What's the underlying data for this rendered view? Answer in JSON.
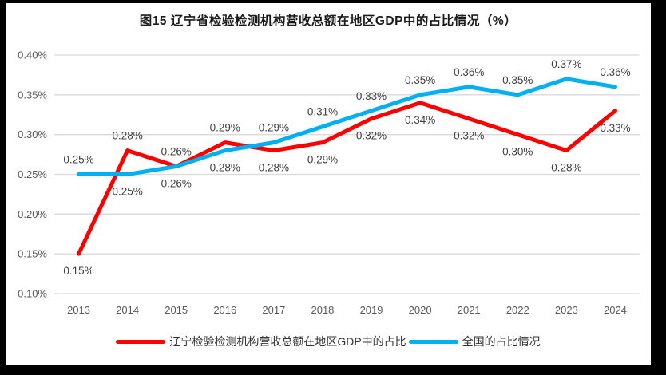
{
  "chart_data": {
    "type": "line",
    "title": "图15 辽宁省检验检测机构营收总额在地区GDP中的占比情况（%）",
    "categories": [
      "2013",
      "2014",
      "2015",
      "2016",
      "2017",
      "2018",
      "2019",
      "2020",
      "2021",
      "2022",
      "2023",
      "2024"
    ],
    "series": [
      {
        "name": "辽宁检验检测机构营收总额在地区GDP中的占比",
        "color": "#FF0000",
        "values": [
          0.15,
          0.28,
          0.26,
          0.29,
          0.28,
          0.29,
          0.32,
          0.34,
          0.32,
          0.3,
          0.28,
          0.33
        ],
        "labels": [
          "0.15%",
          "0.28%",
          "0.26%",
          "0.29%",
          "0.28%",
          "0.29%",
          "0.32%",
          "0.34%",
          "0.32%",
          "0.30%",
          "0.28%",
          "0.33%"
        ],
        "label_pos": [
          "below",
          "above",
          "below",
          "above",
          "below",
          "below",
          "below",
          "below",
          "below",
          "below",
          "below",
          "below"
        ]
      },
      {
        "name": "全国的占比情况",
        "color": "#00B0F0",
        "values": [
          0.25,
          0.25,
          0.26,
          0.28,
          0.29,
          0.31,
          0.33,
          0.35,
          0.36,
          0.35,
          0.37,
          0.36
        ],
        "labels": [
          "0.25%",
          "0.25%",
          "0.26%",
          "0.28%",
          "0.29%",
          "0.31%",
          "0.33%",
          "0.35%",
          "0.36%",
          "0.35%",
          "0.37%",
          "0.36%"
        ],
        "label_pos": [
          "above",
          "below",
          "above",
          "below",
          "above",
          "above",
          "above",
          "above",
          "above",
          "above",
          "above",
          "above"
        ]
      }
    ],
    "y_axis": {
      "min": 0.1,
      "max": 0.4,
      "step": 0.05,
      "tick_labels": [
        "0.40%",
        "0.35%",
        "0.30%",
        "0.25%",
        "0.20%",
        "0.15%",
        "0.10%"
      ]
    },
    "x_axis": {
      "tick_labels": [
        "2013",
        "2014",
        "2015",
        "2016",
        "2017",
        "2018",
        "2019",
        "2020",
        "2021",
        "2022",
        "2023",
        "2024"
      ]
    },
    "grid": true,
    "legend_position": "bottom"
  },
  "colors": {
    "frame": "#000000",
    "panel_bg": "#ffffff",
    "gridline": "#D9D9D9",
    "axis_text": "#595959",
    "data_label_text": "#404040",
    "title_text": "#1a1a1a",
    "series_red": "#FF0000",
    "series_blue": "#00B0F0"
  }
}
